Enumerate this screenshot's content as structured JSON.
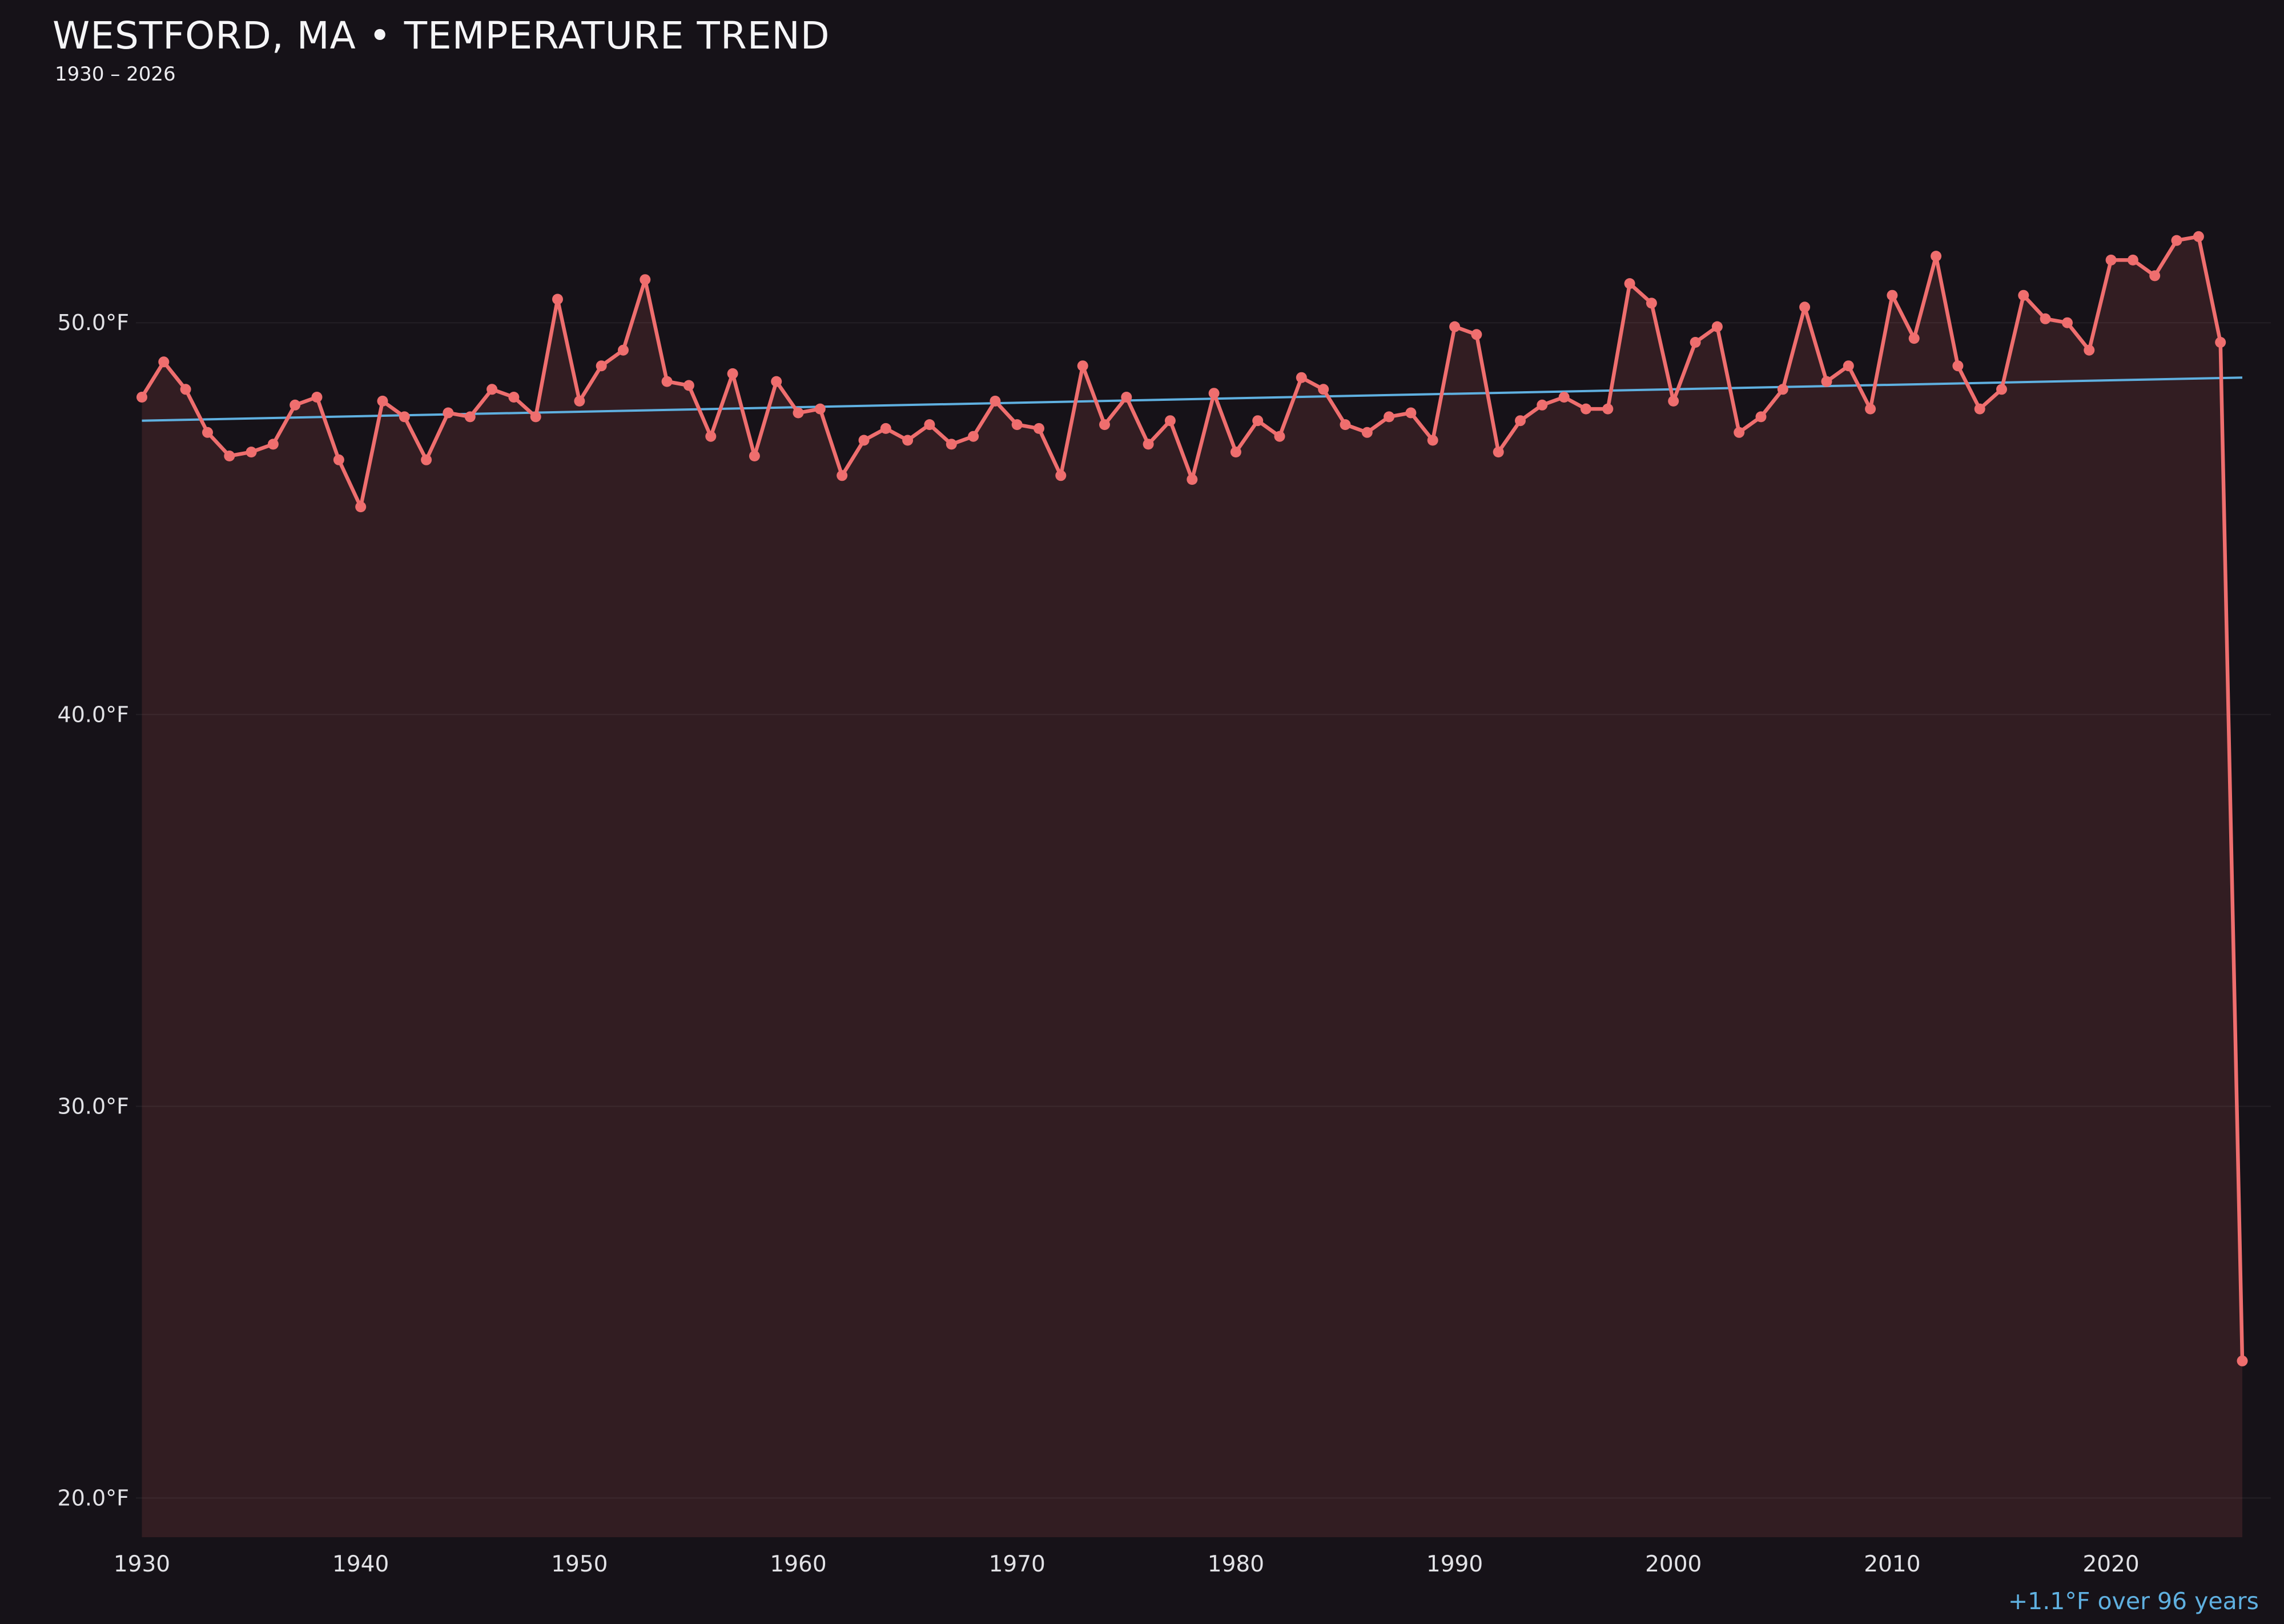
{
  "header": {
    "title": "WESTFORD, MA • TEMPERATURE TREND",
    "subtitle": "1930 – 2026"
  },
  "annotation": {
    "text": "+1.1°F over 96 years"
  },
  "chart_data": {
    "type": "line",
    "title": "WESTFORD, MA • TEMPERATURE TREND",
    "subtitle": "1930 – 2026",
    "xlabel": "",
    "ylabel": "",
    "start_year": 1930,
    "end_year": 2026,
    "values": [
      48.1,
      49.0,
      48.3,
      47.2,
      46.6,
      46.7,
      46.9,
      47.9,
      48.1,
      46.5,
      45.3,
      48.0,
      47.6,
      46.5,
      47.7,
      47.6,
      48.3,
      48.1,
      47.6,
      50.6,
      48.0,
      48.9,
      49.3,
      51.1,
      48.5,
      48.4,
      47.1,
      48.7,
      46.6,
      48.5,
      47.7,
      47.8,
      46.1,
      47.0,
      47.3,
      47.0,
      47.4,
      46.9,
      47.1,
      48.0,
      47.4,
      47.3,
      46.1,
      48.9,
      47.4,
      48.1,
      46.9,
      47.5,
      46.0,
      48.2,
      46.7,
      47.5,
      47.1,
      48.6,
      48.3,
      47.4,
      47.2,
      47.6,
      47.7,
      47.0,
      49.9,
      49.7,
      46.7,
      47.5,
      47.9,
      48.1,
      47.8,
      47.8,
      51.0,
      50.5,
      48.0,
      49.5,
      49.9,
      47.2,
      47.6,
      48.3,
      50.4,
      48.5,
      48.9,
      47.8,
      50.7,
      49.6,
      51.7,
      48.9,
      47.8,
      48.3,
      50.7,
      50.1,
      50.0,
      49.3,
      51.6,
      51.6,
      51.2,
      52.1,
      52.2,
      49.5,
      23.5
    ],
    "x_ticks": [
      1930,
      1940,
      1950,
      1960,
      1970,
      1980,
      1990,
      2000,
      2010,
      2020
    ],
    "y_ticks": [
      {
        "value": 20,
        "label": "20.0°F"
      },
      {
        "value": 30,
        "label": "30.0°F"
      },
      {
        "value": 40,
        "label": "40.0°F"
      },
      {
        "value": 50,
        "label": "50.0°F"
      }
    ],
    "ylim": [
      19.0,
      55.6
    ],
    "grid": "horizontal",
    "legend": "none",
    "trend": {
      "start_year": 1930,
      "end_year": 2026,
      "start_value": 47.5,
      "end_value": 48.6,
      "delta_label": "+1.1°F over 96 years"
    },
    "colors": {
      "background": "#161218",
      "line": "#ef6e6e",
      "marker": "#ef6e6e",
      "area_fill": "rgba(239,110,110,0.13)",
      "trend_line": "#5fb0e0",
      "grid_line": "rgba(255,255,255,0.06)",
      "tick_text": "#e2e2e6",
      "title_text": "#f5f5f7",
      "subtitle_text": "#ececf0",
      "annotation_text": "#5fb0e0"
    }
  }
}
